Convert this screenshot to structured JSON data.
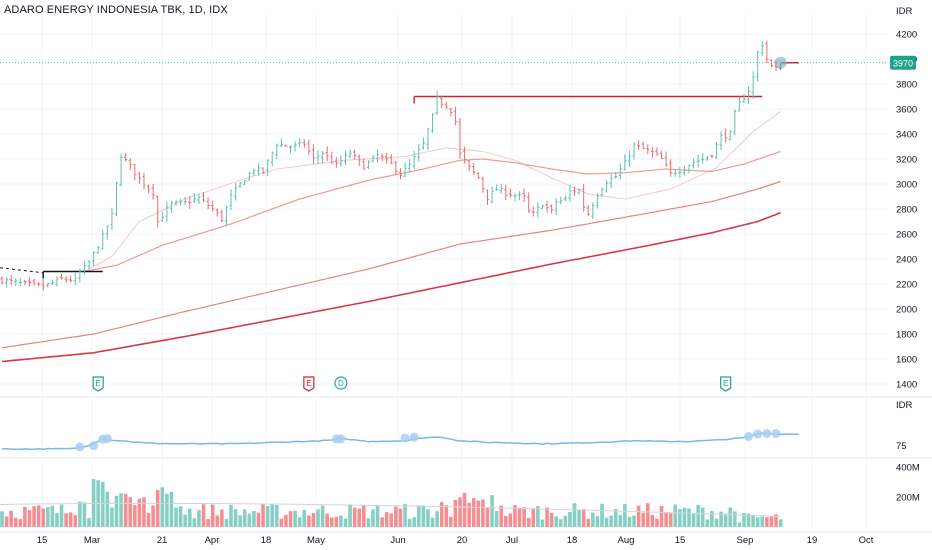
{
  "header": {
    "title": "ADARO ENERGY INDONESIA TBK, 1D, IDX"
  },
  "colors": {
    "up": "#5ebfb0",
    "down": "#ef6a6f",
    "ma20": "#f2c9c9",
    "ma50": "#ee9a96",
    "ma100": "#ea8481",
    "ma200": "#d43b40",
    "resistance": "#d7202a",
    "rsi": "#76b9ef",
    "grid": "#f0f3fa",
    "axis_text": "#131722",
    "price_badge": "#1fa387",
    "earnings_up": "#1fa387",
    "earnings_down": "#d7202a",
    "dividend": "#26a69a"
  },
  "chart_data": [
    {
      "type": "candlestick",
      "title": "ADARO ENERGY INDONESIA TBK, 1D, IDX",
      "currency_label": "IDR",
      "ylim": [
        1400,
        4250
      ],
      "yticks": [
        1400,
        1600,
        1800,
        2000,
        2200,
        2400,
        2600,
        2800,
        3000,
        3200,
        3400,
        3600,
        3800,
        4000,
        4200
      ],
      "last_price": 3970,
      "last_price_label": "3970",
      "x_labels": [
        "15",
        "Mar",
        "21",
        "Apr",
        "18",
        "May",
        "Jun",
        "20",
        "Jul",
        "18",
        "Aug",
        "15",
        "Sep",
        "19",
        "Oct"
      ],
      "close_path": [
        [
          0,
          2230
        ],
        [
          5,
          2200
        ],
        [
          9,
          2180
        ],
        [
          13,
          2240
        ],
        [
          16,
          2230
        ],
        [
          17,
          2290
        ],
        [
          19,
          2370
        ],
        [
          22,
          2580
        ],
        [
          24,
          2750
        ],
        [
          25,
          3000
        ],
        [
          26,
          3230
        ],
        [
          28,
          3140
        ],
        [
          30,
          3040
        ],
        [
          33,
          2930
        ],
        [
          34,
          2700
        ],
        [
          37,
          2840
        ],
        [
          40,
          2850
        ],
        [
          43,
          2890
        ],
        [
          46,
          2800
        ],
        [
          48,
          2720
        ],
        [
          50,
          2900
        ],
        [
          52,
          3000
        ],
        [
          55,
          3120
        ],
        [
          57,
          3100
        ],
        [
          60,
          3320
        ],
        [
          63,
          3300
        ],
        [
          66,
          3320
        ],
        [
          68,
          3200
        ],
        [
          70,
          3250
        ],
        [
          73,
          3150
        ],
        [
          76,
          3250
        ],
        [
          79,
          3140
        ],
        [
          82,
          3230
        ],
        [
          85,
          3160
        ],
        [
          87,
          3080
        ],
        [
          89,
          3150
        ],
        [
          92,
          3320
        ],
        [
          94,
          3540
        ],
        [
          95,
          3680
        ],
        [
          96,
          3650
        ],
        [
          97,
          3630
        ],
        [
          98,
          3590
        ],
        [
          99,
          3500
        ],
        [
          100,
          3240
        ],
        [
          102,
          3130
        ],
        [
          104,
          3050
        ],
        [
          106,
          2890
        ],
        [
          108,
          2960
        ],
        [
          110,
          2930
        ],
        [
          112,
          2910
        ],
        [
          114,
          2890
        ],
        [
          115,
          2780
        ],
        [
          116,
          2760
        ],
        [
          118,
          2840
        ],
        [
          120,
          2780
        ],
        [
          121,
          2860
        ],
        [
          123,
          2880
        ],
        [
          124,
          2940
        ],
        [
          126,
          2950
        ],
        [
          127,
          2820
        ],
        [
          128,
          2760
        ],
        [
          130,
          2920
        ],
        [
          132,
          3020
        ],
        [
          134,
          3060
        ],
        [
          136,
          3170
        ],
        [
          138,
          3310
        ],
        [
          140,
          3280
        ],
        [
          142,
          3250
        ],
        [
          144,
          3200
        ],
        [
          146,
          3080
        ],
        [
          147,
          3100
        ],
        [
          149,
          3130
        ],
        [
          151,
          3180
        ],
        [
          153,
          3200
        ],
        [
          155,
          3240
        ],
        [
          157,
          3380
        ],
        [
          159,
          3400
        ],
        [
          160,
          3560
        ],
        [
          161,
          3640
        ],
        [
          163,
          3750
        ],
        [
          164,
          3850
        ],
        [
          165,
          4050
        ],
        [
          166,
          4120
        ],
        [
          167,
          4000
        ],
        [
          168,
          3940
        ],
        [
          169,
          3920
        ],
        [
          170,
          3970
        ]
      ],
      "moving_averages": [
        {
          "values_path": [
            [
              18,
              2300
            ],
            [
              24,
              2420
            ],
            [
              30,
              2700
            ],
            [
              40,
              2880
            ],
            [
              52,
              3030
            ],
            [
              60,
              3120
            ],
            [
              75,
              3190
            ],
            [
              88,
              3220
            ],
            [
              97,
              3290
            ],
            [
              105,
              3260
            ],
            [
              112,
              3190
            ],
            [
              120,
              3050
            ],
            [
              128,
              2920
            ],
            [
              136,
              2880
            ],
            [
              146,
              2960
            ],
            [
              156,
              3130
            ],
            [
              164,
              3420
            ],
            [
              170,
              3580
            ]
          ]
        },
        {
          "values_path": [
            [
              18,
              2300
            ],
            [
              25,
              2350
            ],
            [
              35,
              2510
            ],
            [
              50,
              2680
            ],
            [
              65,
              2880
            ],
            [
              80,
              3030
            ],
            [
              92,
              3120
            ],
            [
              100,
              3190
            ],
            [
              105,
              3200
            ],
            [
              112,
              3170
            ],
            [
              120,
              3120
            ],
            [
              128,
              3080
            ],
            [
              136,
              3090
            ],
            [
              145,
              3120
            ],
            [
              155,
              3100
            ],
            [
              162,
              3160
            ],
            [
              170,
              3260
            ]
          ]
        },
        {
          "values_path": [
            [
              0,
              1690
            ],
            [
              20,
              1800
            ],
            [
              40,
              1980
            ],
            [
              60,
              2150
            ],
            [
              80,
              2320
            ],
            [
              100,
              2520
            ],
            [
              120,
              2630
            ],
            [
              140,
              2760
            ],
            [
              155,
              2860
            ],
            [
              165,
              2960
            ],
            [
              170,
              3020
            ]
          ]
        },
        {
          "values_path": [
            [
              0,
              1580
            ],
            [
              20,
              1650
            ],
            [
              40,
              1780
            ],
            [
              60,
              1920
            ],
            [
              80,
              2060
            ],
            [
              100,
              2210
            ],
            [
              120,
              2360
            ],
            [
              140,
              2500
            ],
            [
              155,
              2610
            ],
            [
              165,
              2700
            ],
            [
              170,
              2770
            ]
          ]
        }
      ],
      "resistance_levels": [
        {
          "price": 3700,
          "from_bar": 90,
          "to_bar": 166
        },
        {
          "price": 2300,
          "from_bar": 9,
          "to_bar": 22
        },
        {
          "price": 3970,
          "from_bar": 170,
          "to_bar": 174
        }
      ],
      "events": [
        {
          "label": "E",
          "kind": "earnings",
          "bar": 21
        },
        {
          "label": "E",
          "kind": "earnings-negative",
          "bar": 67
        },
        {
          "label": "D",
          "kind": "dividend",
          "bar": 74
        },
        {
          "label": "E",
          "kind": "earnings",
          "bar": 158
        }
      ]
    },
    {
      "type": "line",
      "name": "relative-strength",
      "axis_label": "IDR",
      "yticks": [
        75
      ],
      "values_path": [
        [
          0,
          63
        ],
        [
          8,
          63
        ],
        [
          15,
          64
        ],
        [
          18,
          70
        ],
        [
          22,
          95
        ],
        [
          26,
          90
        ],
        [
          32,
          82
        ],
        [
          40,
          80
        ],
        [
          50,
          80
        ],
        [
          55,
          82
        ],
        [
          60,
          85
        ],
        [
          70,
          90
        ],
        [
          75,
          96
        ],
        [
          80,
          88
        ],
        [
          88,
          90
        ],
        [
          92,
          100
        ],
        [
          96,
          102
        ],
        [
          100,
          90
        ],
        [
          106,
          85
        ],
        [
          112,
          83
        ],
        [
          118,
          80
        ],
        [
          124,
          82
        ],
        [
          130,
          85
        ],
        [
          138,
          90
        ],
        [
          144,
          88
        ],
        [
          150,
          88
        ],
        [
          156,
          92
        ],
        [
          162,
          100
        ],
        [
          164,
          108
        ],
        [
          166,
          115
        ],
        [
          170,
          112
        ],
        [
          174,
          112
        ]
      ]
    },
    {
      "type": "bar",
      "name": "volume",
      "ylim": [
        0,
        400
      ],
      "yticks": [
        200,
        400
      ],
      "ytick_labels": [
        "200M",
        "400M"
      ],
      "seed": 7
    }
  ]
}
